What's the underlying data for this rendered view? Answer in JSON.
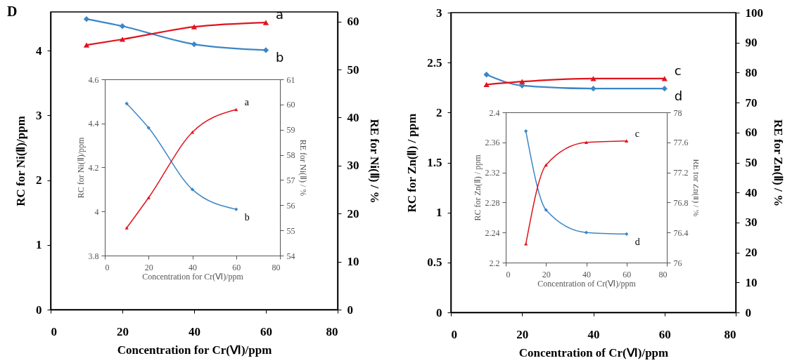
{
  "chart_data": [
    {
      "type": "line",
      "title": "D",
      "xlabel": "Concentration for Cr(Ⅵ)/ppm",
      "ylabel": "RC  for Ni(Ⅱ)/ppm",
      "y2label": "RE  for Ni(Ⅱ) / %",
      "x": [
        10,
        20,
        40,
        60
      ],
      "xlim": [
        0,
        80
      ],
      "xticks": [
        0,
        20,
        40,
        60,
        80
      ],
      "ylim": [
        0,
        4.6
      ],
      "yticks": [
        0,
        1,
        2,
        3,
        4
      ],
      "y2lim": [
        0,
        62
      ],
      "y2ticks": [
        0,
        10,
        20,
        30,
        40,
        50,
        60
      ],
      "grid": false,
      "series": [
        {
          "name": "b",
          "color": "#3c86c6",
          "marker": "diamond",
          "values": [
            4.49,
            4.38,
            4.1,
            4.01
          ]
        },
        {
          "name": "a",
          "color": "#e0141e",
          "axis": "y2",
          "marker": "triangle",
          "values": [
            55.1,
            56.3,
            58.9,
            59.8
          ]
        }
      ]
    },
    {
      "type": "line",
      "xlabel": "Concentration for Cr(Ⅵ)/ppm",
      "ylabel": "RC for Ni(Ⅱ)/ppm",
      "y2label": "RE for Ni(Ⅱ) / %",
      "x": [
        10,
        20,
        40,
        60
      ],
      "xlim": [
        0,
        80
      ],
      "xticks": [
        0,
        20,
        40,
        60,
        80
      ],
      "ylim": [
        3.8,
        4.6
      ],
      "yticks": [
        3.8,
        4,
        4.2,
        4.4,
        4.6
      ],
      "y2lim": [
        54,
        61
      ],
      "y2ticks": [
        54,
        55,
        56,
        57,
        58,
        59,
        60,
        61
      ],
      "grid": false,
      "series": [
        {
          "name": "b",
          "color": "#3c86c6",
          "marker": "diamond",
          "values": [
            4.49,
            4.38,
            4.1,
            4.01
          ]
        },
        {
          "name": "a",
          "color": "#e0141e",
          "axis": "y2",
          "marker": "triangle",
          "values": [
            55.1,
            56.3,
            58.9,
            59.8
          ]
        }
      ]
    },
    {
      "type": "line",
      "xlabel": "Concentration of Cr(Ⅵ)/ppm",
      "ylabel": "RC  for Zn(Ⅱ) / ppm",
      "y2label": "RE  for Zn(Ⅱ) / %",
      "x": [
        10,
        20,
        40,
        60
      ],
      "xlim": [
        0,
        80
      ],
      "xticks": [
        0,
        20,
        40,
        60,
        80
      ],
      "ylim": [
        0,
        3
      ],
      "yticks": [
        0,
        0.5,
        1,
        1.5,
        2,
        2.5,
        3
      ],
      "y2lim": [
        0,
        100
      ],
      "y2ticks": [
        0,
        10,
        20,
        30,
        40,
        50,
        60,
        70,
        80,
        90,
        100
      ],
      "grid": false,
      "series": [
        {
          "name": "d",
          "color": "#3c86c6",
          "marker": "diamond",
          "values": [
            2.38,
            2.27,
            2.24,
            2.24
          ]
        },
        {
          "name": "c",
          "color": "#e0141e",
          "axis": "y2",
          "marker": "triangle",
          "values": [
            76,
            77,
            78,
            78
          ]
        }
      ]
    },
    {
      "type": "line",
      "xlabel": "Concentration of Cr(Ⅵ)/ppm",
      "ylabel": "RC for Zn(Ⅱ) / ppm",
      "y2label": "RE for Zn(Ⅱ) / %",
      "x": [
        10,
        20,
        40,
        60
      ],
      "xlim": [
        0,
        80
      ],
      "xticks": [
        0,
        20,
        40,
        60,
        80
      ],
      "ylim": [
        2.2,
        2.4
      ],
      "yticks": [
        2.2,
        2.24,
        2.28,
        2.32,
        2.36,
        2.4
      ],
      "y2lim": [
        76,
        78
      ],
      "y2ticks": [
        76,
        76.4,
        76.8,
        77.2,
        77.6,
        78
      ],
      "grid": false,
      "series": [
        {
          "name": "d",
          "color": "#3c86c6",
          "marker": "diamond",
          "values": [
            2.375,
            2.27,
            2.24,
            2.238
          ]
        },
        {
          "name": "c",
          "color": "#e0141e",
          "axis": "y2",
          "marker": "triangle",
          "values": [
            76.25,
            77.3,
            77.6,
            77.62
          ]
        }
      ]
    }
  ]
}
